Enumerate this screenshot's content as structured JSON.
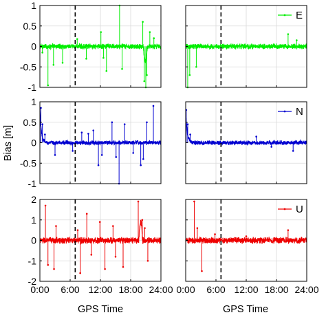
{
  "chart_data": {
    "type": "line",
    "ylabel": "Bias [m]",
    "xlabel": "GPS Time",
    "x_range_hours": [
      0,
      24
    ],
    "x_tick_hours": [
      0,
      6,
      12,
      18,
      24
    ],
    "x_tick_labels": [
      "0:00",
      "6:00",
      "12:00",
      "18:00",
      "24:00"
    ],
    "vertical_dashed_line_hour": 7,
    "grid": true,
    "legend_placement": "top-right",
    "columns": [
      "left",
      "right"
    ],
    "rows": [
      {
        "series_name": "E",
        "color": "#00ee00",
        "ylim": [
          -1,
          1
        ],
        "y_ticks": [
          -1,
          -0.5,
          0,
          0.5,
          1
        ],
        "y_tick_labels": [
          "-1",
          "-0.5",
          "0",
          "0.5",
          "1"
        ],
        "noise_amplitude": 0.05,
        "spikes": {
          "left": [
            [
              0.5,
              -0.15
            ],
            [
              1.6,
              -0.95
            ],
            [
              2.7,
              -0.45
            ],
            [
              4.5,
              -0.4
            ],
            [
              7.4,
              0.18
            ],
            [
              9.2,
              -0.3
            ],
            [
              12.1,
              0.35
            ],
            [
              12.6,
              -0.28
            ],
            [
              13.2,
              -0.6
            ],
            [
              15.8,
              1.0
            ],
            [
              16.3,
              -0.55
            ],
            [
              20.4,
              0.6
            ],
            [
              20.7,
              -0.85
            ],
            [
              21.0,
              -1.0
            ],
            [
              21.2,
              -0.7
            ],
            [
              21.8,
              0.35
            ],
            [
              22.6,
              0.2
            ]
          ],
          "right": [
            [
              0.4,
              -1.0
            ],
            [
              0.8,
              -0.7
            ],
            [
              2.1,
              -0.5
            ],
            [
              20.3,
              0.3
            ],
            [
              22.0,
              0.15
            ]
          ]
        }
      },
      {
        "series_name": "N",
        "color": "#0000d0",
        "ylim": [
          -1,
          1
        ],
        "y_ticks": [
          -1,
          -0.5,
          0,
          0.5,
          1
        ],
        "y_tick_labels": [
          "-1",
          "-0.5",
          "0",
          "0.5",
          "1"
        ],
        "noise_amplitude": 0.04,
        "spikes": {
          "left": [
            [
              0.2,
              0.85
            ],
            [
              0.5,
              0.45
            ],
            [
              1.0,
              0.2
            ],
            [
              3.0,
              -0.3
            ],
            [
              6.5,
              -0.2
            ],
            [
              8.3,
              0.25
            ],
            [
              9.6,
              0.22
            ],
            [
              10.6,
              0.3
            ],
            [
              11.6,
              -0.55
            ],
            [
              12.3,
              -0.3
            ],
            [
              14.3,
              0.5
            ],
            [
              15.1,
              -0.35
            ],
            [
              15.7,
              -1.0
            ],
            [
              16.8,
              0.45
            ],
            [
              18.5,
              -0.25
            ],
            [
              20.0,
              -0.55
            ],
            [
              20.5,
              -0.4
            ],
            [
              21.2,
              0.5
            ],
            [
              22.5,
              0.9
            ]
          ],
          "right": [
            [
              0.1,
              0.8
            ],
            [
              0.4,
              0.45
            ],
            [
              0.9,
              0.2
            ],
            [
              14.0,
              0.15
            ],
            [
              17.0,
              -0.1
            ],
            [
              21.3,
              -0.2
            ]
          ]
        }
      },
      {
        "series_name": "U",
        "color": "#ee0000",
        "ylim": [
          -2,
          2
        ],
        "y_ticks": [
          -2,
          -1,
          0,
          1,
          2
        ],
        "y_tick_labels": [
          "-2",
          "-1",
          "0",
          "1",
          "2"
        ],
        "noise_amplitude": 0.12,
        "spikes": {
          "left": [
            [
              1.1,
              1.7
            ],
            [
              1.6,
              -1.2
            ],
            [
              2.8,
              -1.4
            ],
            [
              3.2,
              0.7
            ],
            [
              7.5,
              0.5
            ],
            [
              8.0,
              -1.6
            ],
            [
              9.3,
              1.3
            ],
            [
              10.2,
              -0.7
            ],
            [
              11.9,
              0.9
            ],
            [
              12.9,
              -1.4
            ],
            [
              14.5,
              0.7
            ],
            [
              15.0,
              -0.8
            ],
            [
              16.5,
              -1.3
            ],
            [
              19.5,
              1.9
            ],
            [
              20.3,
              1.0
            ],
            [
              20.8,
              0.6
            ],
            [
              21.4,
              -1.0
            ]
          ],
          "right": [
            [
              1.7,
              1.9
            ],
            [
              2.3,
              0.6
            ],
            [
              3.2,
              -1.5
            ],
            [
              5.8,
              0.3
            ],
            [
              12.0,
              0.2
            ],
            [
              20.3,
              0.5
            ]
          ]
        }
      }
    ]
  }
}
